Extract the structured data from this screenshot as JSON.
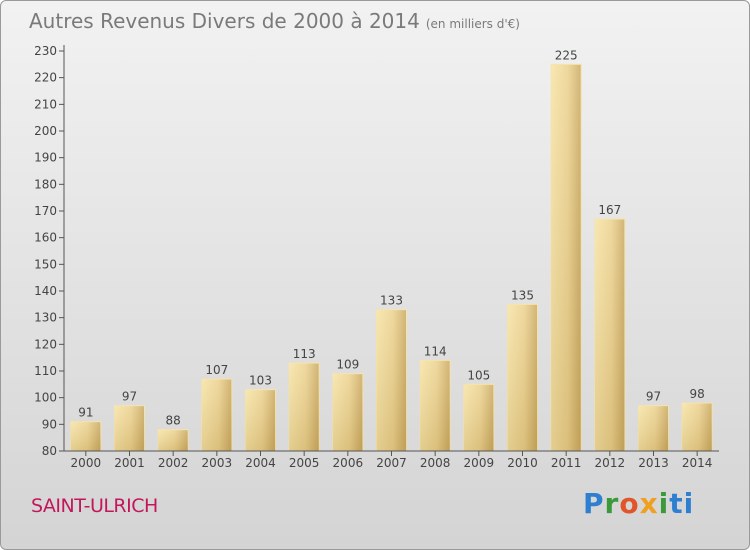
{
  "header": {
    "title": "Autres Revenus Divers de 2000 à 2014",
    "unit": "(en milliers d'€)"
  },
  "footer": {
    "commune": "SAINT-ULRICH",
    "logo": [
      "P",
      "r",
      "o",
      "x",
      "i",
      "ti"
    ]
  },
  "colors": {
    "bar": "#ecd18d",
    "barEdge": "#f5e2a8",
    "axis": "#555555",
    "grid": "#ffffff",
    "title": "#7a7a7a",
    "commune": "#c2185b"
  },
  "chart_data": {
    "type": "bar",
    "categories": [
      "2000",
      "2001",
      "2002",
      "2003",
      "2004",
      "2005",
      "2006",
      "2007",
      "2008",
      "2009",
      "2010",
      "2011",
      "2012",
      "2013",
      "2014"
    ],
    "values": [
      91,
      97,
      88,
      107,
      103,
      113,
      109,
      133,
      114,
      105,
      135,
      225,
      167,
      97,
      98
    ],
    "ylim": [
      80,
      230
    ],
    "yticks": [
      80,
      90,
      100,
      110,
      120,
      130,
      140,
      150,
      160,
      170,
      180,
      190,
      200,
      210,
      220,
      230
    ],
    "grid": false,
    "legend": "none"
  }
}
